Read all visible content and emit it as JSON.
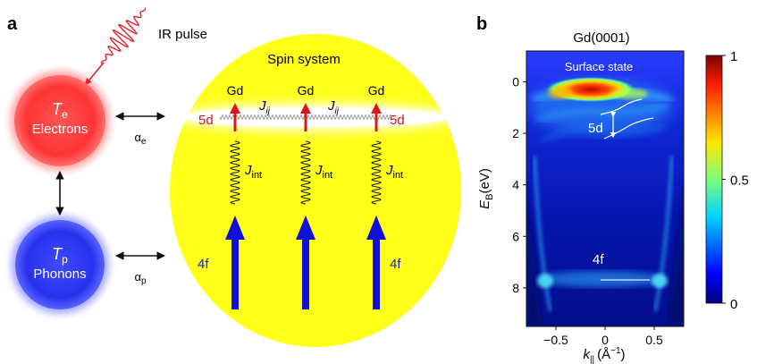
{
  "panel_a": {
    "label": "a",
    "ir_pulse": "IR pulse",
    "electrons": {
      "symbol": "T",
      "subscript": "e",
      "name": "Electrons",
      "color": "#ff3b3b"
    },
    "phonons": {
      "symbol": "T",
      "subscript": "p",
      "name": "Phonons",
      "color": "#2f3cf0"
    },
    "alpha_e": {
      "symbol": "α",
      "subscript": "e"
    },
    "alpha_p": {
      "symbol": "α",
      "subscript": "p"
    },
    "spin_system": {
      "title": "Spin system",
      "fill": "#ffff1a",
      "gd": [
        "Gd",
        "Gd",
        "Gd"
      ],
      "label_5d": "5d",
      "label_4f": "4f",
      "jij": {
        "symbol": "J",
        "subscript": "ij"
      },
      "jint": {
        "symbol": "J",
        "subscript": "int"
      }
    }
  },
  "panel_b": {
    "label": "b",
    "title": "Gd(0001)",
    "surface_state": "Surface state",
    "label_5d": "5d",
    "label_4f": "4f",
    "ylabel": {
      "symbol": "E",
      "subscript": "B",
      "unit": "(eV)"
    },
    "xlabel": {
      "symbol": "k",
      "subscript": "||",
      "unit_prefix": "(Å",
      "unit_sup": "−1",
      "unit_suffix": ")"
    },
    "colorbar": {
      "ticks": [
        {
          "value": 1,
          "label": "1"
        },
        {
          "value": 0.5,
          "label": "0.5"
        },
        {
          "value": 0,
          "label": "0"
        }
      ]
    }
  },
  "chart_data": {
    "type": "heatmap",
    "title": "Gd(0001)",
    "xlabel": "k|| (Å−1)",
    "ylabel": "EB(eV)",
    "xlim": [
      -0.8,
      0.8
    ],
    "ylim": [
      9.5,
      -1.2
    ],
    "x_ticks": [
      -0.5,
      0,
      0.5
    ],
    "x_tick_labels": [
      "−0.5",
      "0",
      "0.5"
    ],
    "y_ticks": [
      0,
      2,
      4,
      6,
      8
    ],
    "y_tick_labels": [
      "0",
      "2",
      "4",
      "6",
      "8"
    ],
    "colorbar_range": [
      0,
      1
    ],
    "annotations": [
      "Surface state",
      "5d",
      "4f"
    ],
    "features": [
      {
        "name": "surface state",
        "x_center": -0.05,
        "energy": 0.2,
        "intensity": 1.0
      },
      {
        "name": "5d bands",
        "energy_range": [
          0.6,
          2.2
        ]
      },
      {
        "name": "4f level",
        "energy": 8.2,
        "intensity": 0.5
      }
    ]
  }
}
